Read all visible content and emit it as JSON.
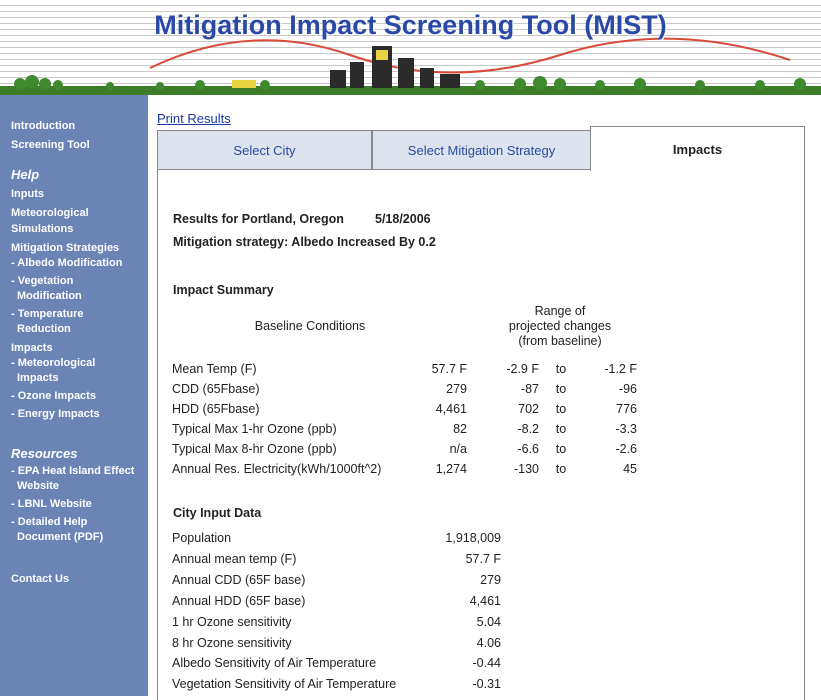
{
  "header": {
    "title": "Mitigation Impact Screening Tool (MIST)"
  },
  "nav": {
    "main": [
      "Introduction",
      "Screening Tool"
    ],
    "help": {
      "heading": "Help",
      "items": [
        {
          "label": "Inputs"
        },
        {
          "label": "Meteorological Simulations"
        },
        {
          "label": "Mitigation Strategies",
          "children": [
            "- Albedo Modification",
            "- Vegetation Modification",
            "- Temperature Reduction"
          ]
        },
        {
          "label": "Impacts",
          "children": [
            "- Meteorological Impacts",
            "- Ozone Impacts",
            "- Energy Impacts"
          ]
        }
      ]
    },
    "resources": {
      "heading": "Resources",
      "items": [
        "- EPA Heat Island Effect Website",
        "- LBNL Website",
        "- Detailed Help Document (PDF)"
      ]
    },
    "contact": "Contact Us"
  },
  "main": {
    "print_link": "Print Results",
    "tabs": [
      "Select City",
      "Select Mitigation Strategy",
      "Impacts"
    ],
    "active_tab": 2,
    "results": {
      "city_line": "Results for Portland, Oregon",
      "date": "5/18/2006",
      "strategy": "Mitigation strategy: Albedo Increased By 0.2"
    },
    "impact_summary": {
      "title": "Impact Summary",
      "baseline_header": "Baseline Conditions",
      "range_header": [
        "Range of",
        "projected changes",
        "(from baseline)"
      ],
      "rows": [
        [
          "Mean Temp (F)",
          "57.7 F",
          "-2.9 F",
          "to",
          "-1.2 F"
        ],
        [
          "CDD (65Fbase)",
          "279",
          "-87",
          "to",
          "-96"
        ],
        [
          "HDD (65Fbase)",
          "4,461",
          "702",
          "to",
          "776"
        ],
        [
          "Typical Max 1-hr Ozone (ppb)",
          "82",
          "-8.2",
          "to",
          "-3.3"
        ],
        [
          "Typical Max 8-hr Ozone (ppb)",
          "n/a",
          "-6.6",
          "to",
          "-2.6"
        ],
        [
          "Annual Res. Electricity(kWh/1000ft^2)",
          "1,274",
          "-130",
          "to",
          "45"
        ]
      ]
    },
    "city_input": {
      "title": "City Input Data",
      "rows": [
        [
          "Population",
          "1,918,009"
        ],
        [
          "Annual mean temp (F)",
          "57.7 F"
        ],
        [
          "Annual CDD (65F base)",
          "279"
        ],
        [
          "Annual HDD (65F base)",
          "4,461"
        ],
        [
          "1 hr Ozone sensitivity",
          "5.04"
        ],
        [
          "8 hr Ozone sensitivity",
          "4.06"
        ],
        [
          "Albedo Sensitivity of Air Temperature",
          "-0.44"
        ],
        [
          "Vegetation Sensitivity of Air Temperature",
          "-0.31"
        ]
      ]
    }
  }
}
